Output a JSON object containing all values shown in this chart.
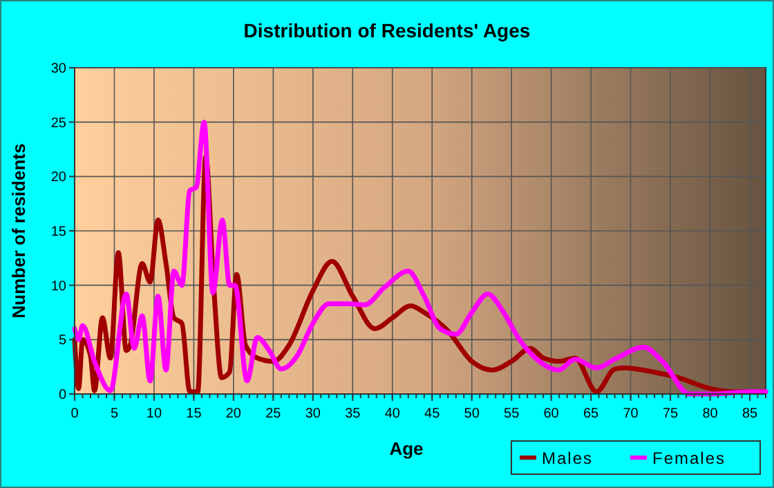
{
  "chart_data": {
    "type": "line",
    "title": "Distribution of Residents' Ages",
    "xlabel": "Age",
    "ylabel": "Number of residents",
    "xlim": [
      0,
      87
    ],
    "ylim": [
      0,
      30
    ],
    "xticks": [
      0,
      5,
      10,
      15,
      20,
      25,
      30,
      35,
      40,
      45,
      50,
      55,
      60,
      65,
      70,
      75,
      80,
      85
    ],
    "yticks": [
      0,
      5,
      10,
      15,
      20,
      25,
      30
    ],
    "grid": true,
    "legend": "bottom right",
    "marker": "none",
    "line_style": "solid",
    "series": [
      {
        "name": "Males",
        "color": "#a00000",
        "x": [
          0,
          0.5,
          1,
          2,
          2.5,
          3.5,
          4.5,
          5.5,
          6.5,
          7,
          8.5,
          9.5,
          10.5,
          11.5,
          12.5,
          13.5,
          14.5,
          15.5,
          16.5,
          17.5,
          18.5,
          19.5,
          20.4,
          21.5,
          23,
          25,
          27,
          30,
          32.4,
          35,
          37.8,
          40,
          42.3,
          44,
          47,
          50,
          52.6,
          55,
          57.4,
          59,
          61,
          63,
          65.7,
          68,
          69.2,
          73,
          76,
          80,
          83,
          87
        ],
        "values": [
          5,
          0.5,
          5,
          3.5,
          0.3,
          7,
          3.3,
          13,
          4,
          4.5,
          12,
          10.3,
          16,
          12,
          7,
          6.5,
          0.2,
          0.2,
          21.8,
          10,
          1.5,
          2,
          11,
          4.5,
          3.3,
          3,
          4.5,
          9.5,
          12.2,
          9,
          6,
          7,
          8.1,
          7.5,
          5.8,
          3,
          2.2,
          3,
          4.2,
          3.3,
          3,
          3.3,
          0.2,
          2.3,
          2.4,
          2,
          1.5,
          0.5,
          0.2,
          0.2
        ]
      },
      {
        "name": "Females",
        "color": "#ff00ff",
        "x": [
          0,
          0.5,
          1,
          2.5,
          4.5,
          6.5,
          7.5,
          8.5,
          9.5,
          10.5,
          11.5,
          12.5,
          13.5,
          14.5,
          15.3,
          16.3,
          17.4,
          18.6,
          19.5,
          20.2,
          21.7,
          23,
          24.5,
          26,
          28,
          30,
          32,
          34.5,
          36.5,
          39,
          42,
          44,
          46,
          48,
          50,
          52,
          54,
          56,
          58.5,
          60.9,
          63,
          65.7,
          68,
          71.6,
          74,
          77.4,
          80,
          85,
          87
        ],
        "values": [
          6,
          5,
          6.3,
          3,
          0.3,
          9.2,
          4.2,
          7.2,
          1.2,
          9,
          2.2,
          11.3,
          10,
          18.7,
          19,
          25,
          9.3,
          16,
          10,
          10,
          1.2,
          5.2,
          4,
          2.3,
          3.5,
          6.5,
          8.3,
          8.3,
          8.2,
          9.8,
          11.3,
          9,
          6,
          5.5,
          7.5,
          9.2,
          7.5,
          5,
          3,
          2.2,
          3.2,
          2.4,
          3.2,
          4.3,
          3,
          0,
          0,
          0.2,
          0.2
        ]
      }
    ]
  }
}
